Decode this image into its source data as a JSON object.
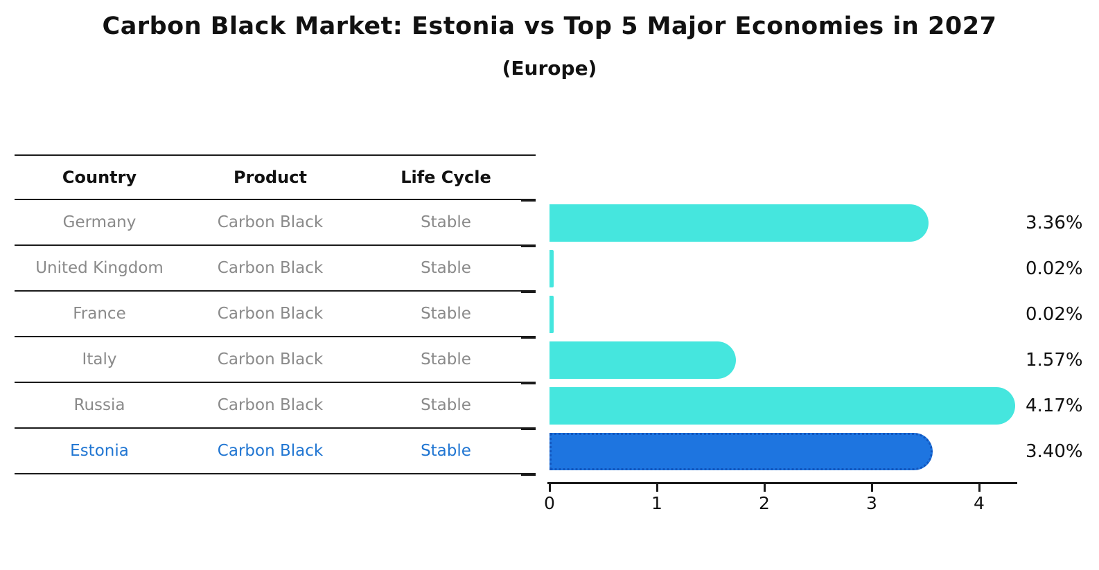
{
  "title": "Carbon Black Market: Estonia vs Top 5 Major Economies in 2027",
  "subtitle": "(Europe)",
  "table": {
    "headers": [
      "Country",
      "Product",
      "Life Cycle"
    ],
    "rows": [
      {
        "country": "Germany",
        "product": "Carbon Black",
        "life_cycle": "Stable",
        "highlight": false
      },
      {
        "country": "United Kingdom",
        "product": "Carbon Black",
        "life_cycle": "Stable",
        "highlight": false
      },
      {
        "country": "France",
        "product": "Carbon Black",
        "life_cycle": "Stable",
        "highlight": false
      },
      {
        "country": "Italy",
        "product": "Carbon Black",
        "life_cycle": "Stable",
        "highlight": false
      },
      {
        "country": "Russia",
        "product": "Carbon Black",
        "life_cycle": "Stable",
        "highlight": false
      },
      {
        "country": "Estonia",
        "product": "Carbon Black",
        "life_cycle": "Stable",
        "highlight": true
      }
    ]
  },
  "chart_data": {
    "type": "bar",
    "orientation": "horizontal",
    "title": "Carbon Black Market: Estonia vs Top 5 Major Economies in 2027",
    "subtitle": "(Europe)",
    "categories": [
      "Germany",
      "United Kingdom",
      "France",
      "Italy",
      "Russia",
      "Estonia"
    ],
    "values": [
      3.36,
      0.02,
      0.02,
      1.57,
      4.17,
      3.4
    ],
    "value_labels": [
      "3.36%",
      "0.02%",
      "0.02%",
      "1.57%",
      "4.17%",
      "3.40%"
    ],
    "x_ticks": [
      "0",
      "1",
      "2",
      "3",
      "4"
    ],
    "xlim": [
      0,
      4.35
    ],
    "grid": false,
    "legend": false,
    "bar_color": "#45E6DE",
    "highlight_color": "#1E75E0",
    "highlight_index": 5
  },
  "colors": {
    "bar": "#45E6DE",
    "highlight_bar": "#1E75E0",
    "highlight_bar_border": "#1256BE",
    "highlight_text": "#2176D2",
    "row_text": "#8a8a8a",
    "axis": "#1a1a1a",
    "label_text": "#111111"
  }
}
